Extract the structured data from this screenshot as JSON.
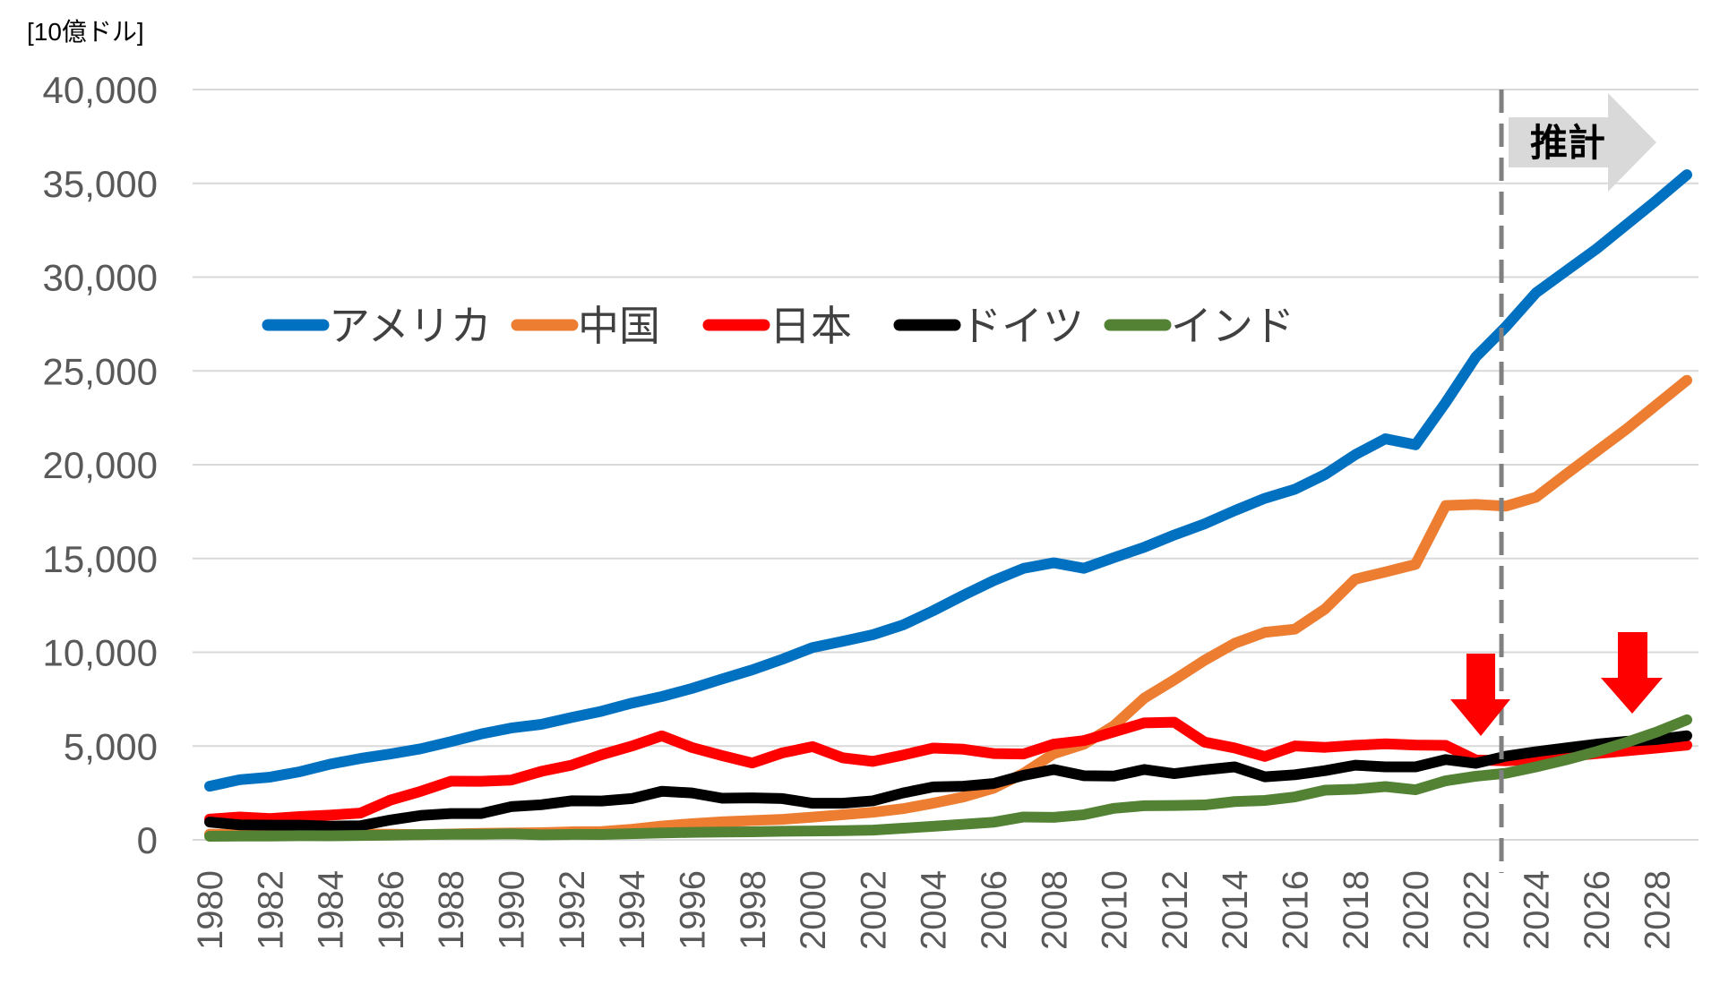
{
  "chart_data": {
    "type": "line",
    "unit_label": "[10億ドル]",
    "ylim": [
      0,
      40000
    ],
    "yticks": [
      0,
      5000,
      10000,
      15000,
      20000,
      25000,
      30000,
      35000,
      40000
    ],
    "ytick_labels": [
      "0",
      "5,000",
      "10,000",
      "15,000",
      "20,000",
      "25,000",
      "30,000",
      "35,000",
      "40,000"
    ],
    "x": [
      1980,
      1981,
      1982,
      1983,
      1984,
      1985,
      1986,
      1987,
      1988,
      1989,
      1990,
      1991,
      1992,
      1993,
      1994,
      1995,
      1996,
      1997,
      1998,
      1999,
      2000,
      2001,
      2002,
      2003,
      2004,
      2005,
      2006,
      2007,
      2008,
      2009,
      2010,
      2011,
      2012,
      2013,
      2014,
      2015,
      2016,
      2017,
      2018,
      2019,
      2020,
      2021,
      2022,
      2023,
      2024,
      2025,
      2026,
      2027,
      2028,
      2029
    ],
    "xtick_labels": [
      "1980",
      "1982",
      "1984",
      "1986",
      "1988",
      "1990",
      "1992",
      "1994",
      "1996",
      "1998",
      "2000",
      "2002",
      "2004",
      "2006",
      "2008",
      "2010",
      "2012",
      "2014",
      "2016",
      "2018",
      "2020",
      "2022",
      "2024",
      "2026",
      "2028"
    ],
    "grid": true,
    "legend_position": "top-left",
    "series": [
      {
        "name": "アメリカ",
        "color": "#0070C0",
        "values": [
          2857,
          3207,
          3343,
          3634,
          4037,
          4339,
          4580,
          4855,
          5236,
          5642,
          5963,
          6158,
          6520,
          6858,
          7287,
          7640,
          8073,
          8578,
          9063,
          9631,
          10251,
          10582,
          10936,
          11458,
          12214,
          13037,
          13815,
          14475,
          14770,
          14478,
          15049,
          15600,
          16254,
          16843,
          17551,
          18206,
          18695,
          19477,
          20533,
          21381,
          21060,
          23315,
          25744,
          27361,
          29168,
          30337,
          31500,
          32800,
          34100,
          35460
        ]
      },
      {
        "name": "中国",
        "color": "#ED7D31",
        "values": [
          305,
          290,
          284,
          304,
          313,
          309,
          300,
          273,
          312,
          348,
          361,
          383,
          427,
          444,
          564,
          734,
          863,
          962,
          1029,
          1094,
          1211,
          1339,
          1471,
          1660,
          1955,
          2286,
          2752,
          3550,
          4594,
          5101,
          6087,
          7552,
          8532,
          9570,
          10475,
          11062,
          11233,
          12310,
          13895,
          14280,
          14688,
          17820,
          17880,
          17790,
          18270,
          19500,
          20700,
          21900,
          23200,
          24500
        ]
      },
      {
        "name": "日本",
        "color": "#FF0000",
        "values": [
          1105,
          1218,
          1134,
          1243,
          1318,
          1427,
          2121,
          2585,
          3125,
          3118,
          3186,
          3649,
          3980,
          4537,
          4998,
          5545,
          4923,
          4492,
          4098,
          4636,
          4968,
          4374,
          4182,
          4519,
          4893,
          4831,
          4601,
          4579,
          5106,
          5289,
          5759,
          6234,
          6272,
          5212,
          4897,
          4445,
          5004,
          4931,
          5040,
          5118,
          5055,
          5034,
          4256,
          4213,
          4300,
          4450,
          4600,
          4750,
          4900,
          5050
        ]
      },
      {
        "name": "ドイツ",
        "color": "#000000",
        "values": [
          950,
          800,
          780,
          780,
          730,
          750,
          1060,
          1300,
          1400,
          1400,
          1770,
          1870,
          2080,
          2070,
          2200,
          2590,
          2500,
          2220,
          2240,
          2200,
          1950,
          1950,
          2080,
          2500,
          2820,
          2860,
          3000,
          3440,
          3750,
          3420,
          3400,
          3750,
          3530,
          3730,
          3890,
          3360,
          3470,
          3690,
          3980,
          3890,
          3890,
          4280,
          4080,
          4460,
          4700,
          4900,
          5100,
          5250,
          5350,
          5550
        ]
      },
      {
        "name": "インド",
        "color": "#548235",
        "values": [
          190,
          200,
          205,
          220,
          215,
          235,
          250,
          280,
          300,
          300,
          320,
          270,
          290,
          285,
          330,
          370,
          400,
          420,
          430,
          460,
          470,
          490,
          520,
          620,
          720,
          830,
          940,
          1220,
          1200,
          1340,
          1680,
          1820,
          1830,
          1860,
          2040,
          2100,
          2290,
          2650,
          2700,
          2840,
          2670,
          3150,
          3390,
          3550,
          3890,
          4270,
          4700,
          5200,
          5750,
          6400
        ]
      }
    ],
    "annotations": {
      "forecast_label": "推計",
      "forecast_start_year": 2022.85,
      "red_down_arrows_at_years": [
        2022.5,
        2027.5
      ]
    }
  }
}
